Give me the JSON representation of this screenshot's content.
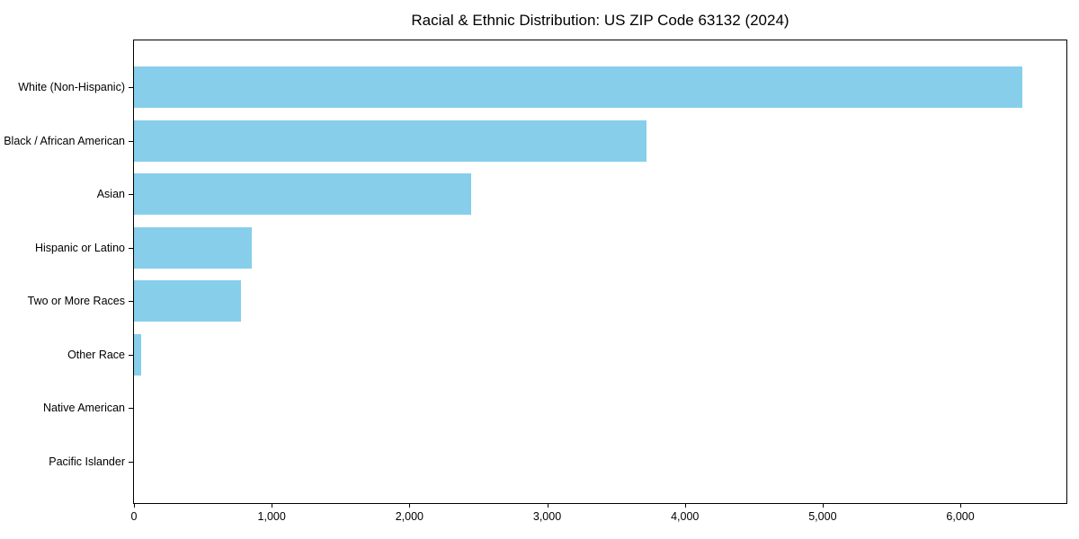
{
  "page": {
    "background": "#ffffff"
  },
  "chart_data": {
    "type": "bar",
    "orientation": "horizontal",
    "title": "Racial & Ethnic Distribution: US ZIP Code 63132 (2024)",
    "categories": [
      "White (Non-Hispanic)",
      "Black / African American",
      "Asian",
      "Hispanic or Latino",
      "Two or More Races",
      "Other Race",
      "Native American",
      "Pacific Islander"
    ],
    "values": [
      6450,
      3720,
      2450,
      855,
      780,
      50,
      0,
      0
    ],
    "xlabel": "",
    "ylabel": "",
    "xlim": [
      0,
      6770
    ],
    "xticks": [
      0,
      1000,
      2000,
      3000,
      4000,
      5000,
      6000
    ],
    "xtick_labels": [
      "0",
      "1,000",
      "2,000",
      "3,000",
      "4,000",
      "5,000",
      "6,000"
    ],
    "bar_color": "#87CEEB",
    "axis_color": "#000000",
    "text_color": "#000000",
    "grid": false,
    "legend": "none"
  }
}
